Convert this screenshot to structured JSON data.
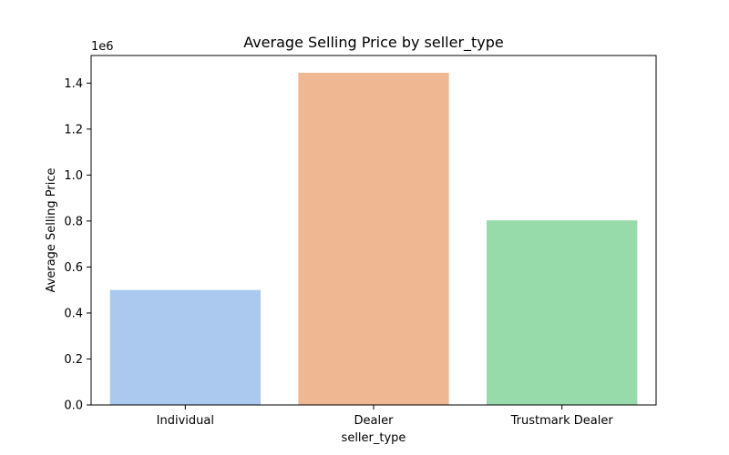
{
  "chart_data": {
    "type": "bar",
    "title": "Average Selling Price by seller_type",
    "xlabel": "seller_type",
    "ylabel": "Average Selling Price",
    "offset_label": "1e6",
    "categories": [
      "Individual",
      "Dealer",
      "Trustmark Dealer"
    ],
    "values": [
      500000,
      1445000,
      803000
    ],
    "colors": [
      "#abc9ee",
      "#f0b892",
      "#98dbaa"
    ],
    "ylim": [
      0,
      1520000
    ],
    "yticks": [
      0,
      200000,
      400000,
      600000,
      800000,
      1000000,
      1200000,
      1400000
    ],
    "ytick_labels": [
      "0.0",
      "0.2",
      "0.4",
      "0.6",
      "0.8",
      "1.0",
      "1.2",
      "1.4"
    ],
    "grid": false,
    "legend": "none"
  }
}
